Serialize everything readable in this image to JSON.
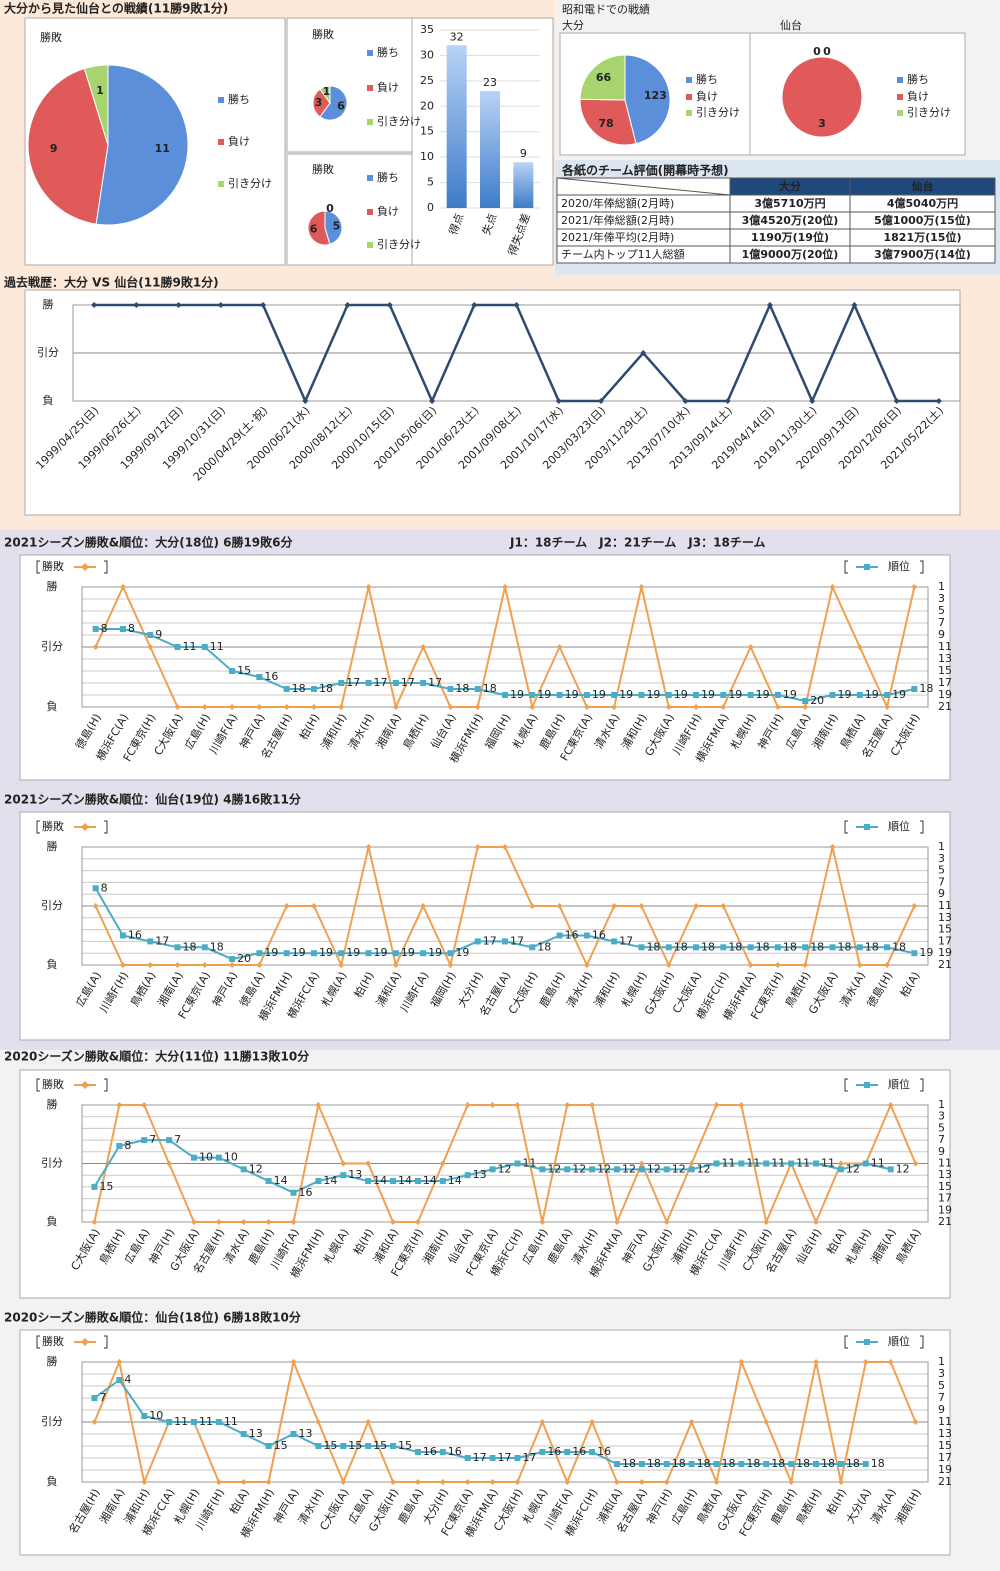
{
  "summary_title": "大分から見た仙台との戦績(11勝9敗1分)",
  "dome_title": "昭和電ドでの戦績",
  "table": {
    "title": "各紙のチーム評価(開幕時予想)",
    "columns": [
      "大分",
      "仙台"
    ],
    "rows": [
      [
        "2020/年俸総額(2月時)",
        "3億5710万円",
        "4億5040万円"
      ],
      [
        "2021/年俸総額(2月時)",
        "3億4520万(20位)",
        "5億1000万(15位)"
      ],
      [
        "2021/年俸平均(2月時)",
        "1190万(19位)",
        "1821万(15位)"
      ],
      [
        "チーム内トップ11人総額",
        "1億9000万(20位)",
        "3億7900万(14位)"
      ]
    ]
  },
  "chart_data": [
    {
      "type": "pie",
      "title": "勝敗",
      "categories": [
        "勝ち",
        "負け",
        "引き分け"
      ],
      "values": [
        11,
        9,
        1
      ],
      "colors": [
        "#5b8fd9",
        "#e05a5a",
        "#a8d46f"
      ]
    },
    {
      "type": "pie",
      "title": "勝敗",
      "categories": [
        "勝ち",
        "負け",
        "引き分け"
      ],
      "values": [
        6,
        3,
        1
      ],
      "colors": [
        "#5b8fd9",
        "#e05a5a",
        "#a8d46f"
      ]
    },
    {
      "type": "pie",
      "title": "勝敗",
      "categories": [
        "勝ち",
        "負け",
        "引き分け"
      ],
      "values": [
        5,
        6,
        0
      ],
      "colors": [
        "#5b8fd9",
        "#e05a5a",
        "#a8d46f"
      ]
    },
    {
      "type": "bar",
      "categories": [
        "得点",
        "失点",
        "得失点差"
      ],
      "values": [
        32,
        23,
        9
      ],
      "color": "#3d7cc9",
      "ylim": [
        0,
        35
      ],
      "yticks": [
        0,
        5,
        10,
        15,
        20,
        25,
        30,
        35
      ]
    },
    {
      "type": "pie",
      "title": "大分",
      "categories": [
        "勝ち",
        "負け",
        "引き分け"
      ],
      "values": [
        123,
        78,
        66
      ],
      "colors": [
        "#5b8fd9",
        "#e05a5a",
        "#a8d46f"
      ]
    },
    {
      "type": "pie",
      "title": "仙台",
      "categories": [
        "勝ち",
        "負け",
        "引き分け"
      ],
      "values": [
        0,
        3,
        0
      ],
      "colors": [
        "#5b8fd9",
        "#e05a5a",
        "#a8d46f"
      ]
    },
    {
      "type": "line",
      "title": "過去戦歴：大分 VS 仙台(11勝9敗1分)",
      "categories": [
        "1999/04/25(日)",
        "1999/06/26(土)",
        "1999/09/12(日)",
        "1999/10/31(日)",
        "2000/04/29(土･祝)",
        "2000/06/21(水)",
        "2000/08/12(土)",
        "2000/10/15(日)",
        "2001/05/06(日)",
        "2001/06/23(土)",
        "2001/09/08(土)",
        "2001/10/17(水)",
        "2003/03/23(日)",
        "2003/11/29(土)",
        "2013/07/10(水)",
        "2013/09/14(土)",
        "2019/04/14(日)",
        "2019/11/30(土)",
        "2020/09/13(日)",
        "2020/12/06(日)",
        "2021/05/22(土)"
      ],
      "values": [
        1,
        1,
        1,
        1,
        1,
        -1,
        1,
        1,
        -1,
        1,
        1,
        -1,
        -1,
        0,
        -1,
        -1,
        1,
        -1,
        1,
        -1,
        -1
      ],
      "color": "#2e4a6e",
      "ylim": [
        -1,
        1
      ],
      "yticks": [
        {
          "value": -1,
          "label": "負"
        },
        {
          "value": 0,
          "label": "引分"
        },
        {
          "value": 1,
          "label": "勝"
        }
      ]
    },
    {
      "type": "line",
      "title": "2021シーズン勝敗&順位：大分(18位) 6勝19敗6分",
      "annotation": "J1：18チーム　J2：21チーム　J3：18チーム",
      "categories": [
        "徳島(H)",
        "横浜FC(A)",
        "FC東京(H)",
        "C大阪(A)",
        "広島(H)",
        "川崎F(A)",
        "神戸(A)",
        "名古屋(H)",
        "柏(H)",
        "浦和(H)",
        "清水(H)",
        "湘南(A)",
        "鳥栖(H)",
        "仙台(A)",
        "横浜FM(H)",
        "福岡(H)",
        "札幌(A)",
        "鹿島(H)",
        "FC東京(A)",
        "清水(A)",
        "浦和(H)",
        "G大阪(A)",
        "川崎F(H)",
        "横浜FM(A)",
        "札幌(H)",
        "神戸(H)",
        "広島(A)",
        "湘南(H)",
        "鳥栖(A)",
        "名古屋(A)",
        "C大阪(H)"
      ],
      "series": [
        {
          "name": "勝敗",
          "color": "#f0a050",
          "values": [
            0,
            1,
            0,
            -1,
            -1,
            -1,
            -1,
            -1,
            -1,
            -1,
            1,
            -1,
            0,
            -1,
            -1,
            1,
            -1,
            0,
            -1,
            -1,
            1,
            -1,
            -1,
            -1,
            0,
            -1,
            -1,
            1,
            0,
            -1,
            1
          ]
        },
        {
          "name": "順位",
          "color": "#4bacc6",
          "axis": "y2",
          "show_labels": true,
          "values": [
            8,
            8,
            9,
            11,
            11,
            15,
            16,
            18,
            18,
            17,
            17,
            17,
            17,
            18,
            18,
            19,
            19,
            19,
            19,
            19,
            19,
            19,
            19,
            19,
            19,
            19,
            20,
            19,
            19,
            19,
            18
          ]
        }
      ],
      "ylim": [
        -1,
        1
      ],
      "yticks": [
        {
          "value": -1,
          "label": "負"
        },
        {
          "value": 0,
          "label": "引分"
        },
        {
          "value": 1,
          "label": "勝"
        }
      ],
      "y2lim": [
        1,
        21
      ],
      "y2_inverted": true,
      "y2ticks": [
        1,
        3,
        5,
        7,
        9,
        11,
        13,
        15,
        17,
        19,
        21
      ],
      "legend": "top"
    },
    {
      "type": "line",
      "title": "2021シーズン勝敗&順位：仙台(19位) 4勝16敗11分",
      "categories": [
        "広島(A)",
        "川崎F(H)",
        "鳥栖(A)",
        "湘南(A)",
        "FC東京(A)",
        "神戸(A)",
        "徳島(A)",
        "横浜FM(H)",
        "横浜FC(A)",
        "札幌(A)",
        "柏(H)",
        "浦和(A)",
        "川崎F(A)",
        "福岡(H)",
        "大分(H)",
        "名古屋(A)",
        "C大阪(H)",
        "鹿島(H)",
        "清水(H)",
        "浦和(H)",
        "札幌(H)",
        "G大阪(H)",
        "C大阪(A)",
        "横浜FC(H)",
        "横浜FM(A)",
        "FC東京(H)",
        "鳥栖(H)",
        "G大阪(A)",
        "清水(A)",
        "徳島(H)",
        "柏(A)"
      ],
      "series": [
        {
          "name": "勝敗",
          "color": "#f0a050",
          "values": [
            0,
            -1,
            -1,
            -1,
            -1,
            -1,
            -1,
            0,
            0,
            -1,
            1,
            -1,
            0,
            -1,
            1,
            1,
            0,
            0,
            -1,
            0,
            0,
            -1,
            0,
            0,
            -1,
            -1,
            -1,
            1,
            -1,
            -1,
            0
          ]
        },
        {
          "name": "順位",
          "color": "#4bacc6",
          "axis": "y2",
          "show_labels": true,
          "values": [
            8,
            16,
            17,
            18,
            18,
            20,
            19,
            19,
            19,
            19,
            19,
            19,
            19,
            19,
            17,
            17,
            18,
            16,
            16,
            17,
            18,
            18,
            18,
            18,
            18,
            18,
            18,
            18,
            18,
            18,
            19
          ]
        }
      ],
      "ylim": [
        -1,
        1
      ],
      "yticks": [
        {
          "value": -1,
          "label": "負"
        },
        {
          "value": 0,
          "label": "引分"
        },
        {
          "value": 1,
          "label": "勝"
        }
      ],
      "y2lim": [
        1,
        21
      ],
      "y2_inverted": true,
      "y2ticks": [
        1,
        3,
        5,
        7,
        9,
        11,
        13,
        15,
        17,
        19,
        21
      ],
      "legend": "top"
    },
    {
      "type": "line",
      "title": "2020シーズン勝敗&順位：大分(11位) 11勝13敗10分",
      "categories": [
        "C大阪(A)",
        "鳥栖(H)",
        "広島(A)",
        "神戸(H)",
        "G大阪(A)",
        "名古屋(H)",
        "清水(A)",
        "鹿島(H)",
        "川崎F(A)",
        "横浜FM(H)",
        "札幌(A)",
        "柏(H)",
        "浦和(A)",
        "FC東京(H)",
        "湘南(H)",
        "仙台(A)",
        "FC東京(A)",
        "横浜FC(H)",
        "広島(H)",
        "鹿島(A)",
        "清水(H)",
        "横浜FM(A)",
        "神戸(A)",
        "G大阪(H)",
        "浦和(H)",
        "横浜FC(A)",
        "川崎F(H)",
        "C大阪(H)",
        "名古屋(A)",
        "仙台(H)",
        "柏(A)",
        "札幌(H)",
        "湘南(A)",
        "鳥栖(A)"
      ],
      "series": [
        {
          "name": "勝敗",
          "color": "#f0a050",
          "values": [
            -1,
            1,
            1,
            0,
            -1,
            -1,
            -1,
            -1,
            -1,
            1,
            0,
            0,
            -1,
            -1,
            0,
            1,
            1,
            1,
            -1,
            1,
            1,
            -1,
            0,
            -1,
            0,
            1,
            1,
            -1,
            0,
            -1,
            0,
            0,
            1,
            0
          ]
        },
        {
          "name": "順位",
          "color": "#4bacc6",
          "axis": "y2",
          "show_labels": true,
          "values": [
            15,
            8,
            7,
            7,
            10,
            10,
            12,
            14,
            16,
            14,
            13,
            14,
            14,
            14,
            14,
            13,
            12,
            11,
            12,
            12,
            12,
            12,
            12,
            12,
            12,
            11,
            11,
            11,
            11,
            11,
            12,
            11,
            12,
            null
          ]
        }
      ],
      "ylim": [
        -1,
        1
      ],
      "yticks": [
        {
          "value": -1,
          "label": "負"
        },
        {
          "value": 0,
          "label": "引分"
        },
        {
          "value": 1,
          "label": "勝"
        }
      ],
      "y2lim": [
        1,
        21
      ],
      "y2_inverted": true,
      "y2ticks": [
        1,
        3,
        5,
        7,
        9,
        11,
        13,
        15,
        17,
        19,
        21
      ],
      "legend": "top"
    },
    {
      "type": "line",
      "title": "2020シーズン勝敗&順位：仙台(18位) 6勝18敗10分",
      "categories": [
        "名古屋(H)",
        "湘南(A)",
        "浦和(H)",
        "横浜FC(A)",
        "札幌(H)",
        "川崎F(H)",
        "柏(A)",
        "横浜FM(H)",
        "神戸(A)",
        "清水(H)",
        "C大阪(A)",
        "広島(A)",
        "G大阪(H)",
        "鹿島(A)",
        "大分(H)",
        "FC東京(A)",
        "横浜FM(A)",
        "C大阪(H)",
        "札幌(A)",
        "川崎F(A)",
        "横浜FC(H)",
        "浦和(A)",
        "名古屋(A)",
        "神戸(H)",
        "広島(H)",
        "鳥栖(A)",
        "G大阪(A)",
        "FC東京(H)",
        "鹿島(H)",
        "鳥栖(H)",
        "柏(H)",
        "大分(A)",
        "清水(A)",
        "湘南(H)"
      ],
      "series": [
        {
          "name": "勝敗",
          "color": "#f0a050",
          "values": [
            0,
            1,
            -1,
            0,
            0,
            -1,
            -1,
            -1,
            1,
            0,
            -1,
            0,
            -1,
            -1,
            -1,
            -1,
            -1,
            -1,
            0,
            -1,
            0,
            -1,
            -1,
            -1,
            0,
            -1,
            1,
            0,
            -1,
            1,
            -1,
            1,
            1,
            0
          ]
        },
        {
          "name": "順位",
          "color": "#4bacc6",
          "axis": "y2",
          "show_labels": true,
          "values": [
            7,
            4,
            10,
            11,
            11,
            11,
            13,
            15,
            13,
            15,
            15,
            15,
            15,
            16,
            16,
            17,
            17,
            17,
            16,
            16,
            16,
            18,
            18,
            18,
            18,
            18,
            18,
            18,
            18,
            18,
            18,
            18,
            null,
            null
          ]
        }
      ],
      "ylim": [
        -1,
        1
      ],
      "yticks": [
        {
          "value": -1,
          "label": "負"
        },
        {
          "value": 0,
          "label": "引分"
        },
        {
          "value": 1,
          "label": "勝"
        }
      ],
      "y2lim": [
        1,
        21
      ],
      "y2_inverted": true,
      "y2ticks": [
        1,
        3,
        5,
        7,
        9,
        11,
        13,
        15,
        17,
        19,
        21
      ],
      "legend": "top"
    }
  ]
}
